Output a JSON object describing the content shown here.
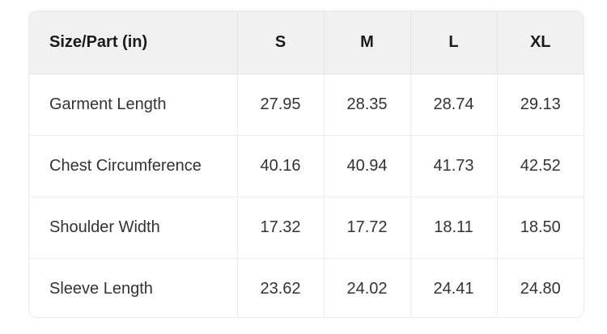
{
  "chart_data": {
    "type": "table",
    "title": "Size/Part (in)",
    "columns": [
      "Size/Part (in)",
      "S",
      "M",
      "L",
      "XL"
    ],
    "rows": [
      {
        "label": "Garment Length",
        "values": [
          "27.95",
          "28.35",
          "28.74",
          "29.13"
        ]
      },
      {
        "label": "Chest Circumference",
        "values": [
          "40.16",
          "40.94",
          "41.73",
          "42.52"
        ]
      },
      {
        "label": "Shoulder Width",
        "values": [
          "17.32",
          "17.72",
          "18.11",
          "18.50"
        ]
      },
      {
        "label": "Sleeve Length",
        "values": [
          "23.62",
          "24.02",
          "24.41",
          "24.80"
        ]
      }
    ],
    "units": "inches",
    "colors": {
      "header_bg": "#f1f1f2",
      "border": "#e9e9e9",
      "header_text": "#1b1b1b",
      "body_text": "#333333",
      "page_bg": "#ffffff"
    }
  }
}
